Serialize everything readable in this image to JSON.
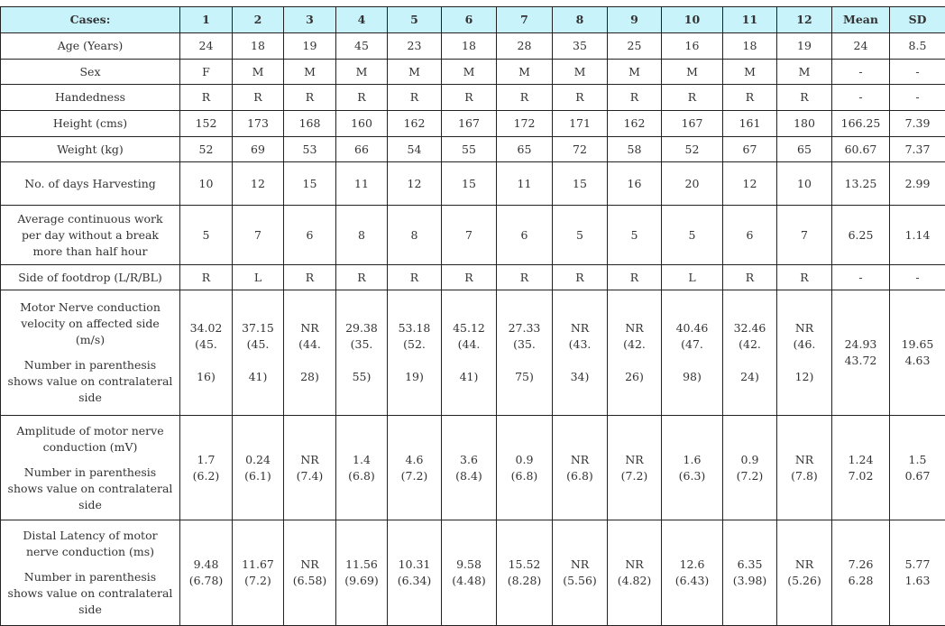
{
  "header": [
    "Cases:",
    "1",
    "2",
    "3",
    "4",
    "5",
    "6",
    "7",
    "8",
    "9",
    "10",
    "11",
    "12",
    "Mean",
    "SD"
  ],
  "header_bg": "#c8f3fb",
  "rows": [
    {
      "label": "Age (Years)",
      "values": [
        "24",
        "18",
        "19",
        "45",
        "23",
        "18",
        "28",
        "35",
        "25",
        "16",
        "18",
        "19",
        "24",
        "8.5"
      ]
    },
    {
      "label": "Sex",
      "values": [
        "F",
        "M",
        "M",
        "M",
        "M",
        "M",
        "M",
        "M",
        "M",
        "M",
        "M",
        "M",
        "-",
        "-"
      ]
    },
    {
      "label": "Handedness",
      "values": [
        "R",
        "R",
        "R",
        "R",
        "R",
        "R",
        "R",
        "R",
        "R",
        "R",
        "R",
        "R",
        "-",
        "-"
      ]
    },
    {
      "label": "Height (cms)",
      "values": [
        "152",
        "173",
        "168",
        "160",
        "162",
        "167",
        "172",
        "171",
        "162",
        "167",
        "161",
        "180",
        "166.25",
        "7.39"
      ]
    },
    {
      "label": "Weight (kg)",
      "values": [
        "52",
        "69",
        "53",
        "66",
        "54",
        "55",
        "65",
        "72",
        "58",
        "52",
        "67",
        "65",
        "60.67",
        "7.37"
      ]
    },
    {
      "label": "No. of days Harvesting",
      "values": [
        "10",
        "12",
        "15",
        "11",
        "12",
        "15",
        "11",
        "15",
        "16",
        "20",
        "12",
        "10",
        "13.25",
        "2.99"
      ]
    },
    {
      "label": "Average continuous work per day without a break more than half hour",
      "values": [
        "5",
        "7",
        "6",
        "8",
        "8",
        "7",
        "6",
        "5",
        "5",
        "5",
        "6",
        "7",
        "6.25",
        "1.14"
      ]
    },
    {
      "label": "Side of footdrop (L/R/BL)",
      "values": [
        "R",
        "L",
        "R",
        "R",
        "R",
        "R",
        "R",
        "R",
        "R",
        "L",
        "R",
        "R",
        "-",
        "-"
      ]
    },
    {
      "label": "Motor Nerve conduction velocity on affected side (m/s)",
      "note": "Number in parenthesis shows value on contralateral side",
      "values": [
        "34.02\n(45.\n\n16)",
        "37.15\n(45.\n\n41)",
        "NR\n(44.\n\n28)",
        "29.38\n(35.\n\n55)",
        "53.18\n(52.\n\n19)",
        "45.12\n(44.\n\n41)",
        "27.33\n(35.\n\n75)",
        "NR\n(43.\n\n34)",
        "NR\n(42.\n\n26)",
        "40.46\n(47.\n\n98)",
        "32.46\n(42.\n\n24)",
        "NR\n(46.\n\n12)",
        "24.93\n43.72",
        "19.65\n4.63"
      ]
    },
    {
      "label": "Amplitude of motor nerve conduction (mV)",
      "note": "Number in parenthesis shows value on contralateral side",
      "values": [
        "1.7\n(6.2)",
        "0.24\n(6.1)",
        "NR\n(7.4)",
        "1.4\n(6.8)",
        "4.6\n(7.2)",
        "3.6\n(8.4)",
        "0.9\n(6.8)",
        "NR\n(6.8)",
        "NR\n(7.2)",
        "1.6\n(6.3)",
        "0.9\n(7.2)",
        "NR\n(7.8)",
        "1.24\n7.02",
        "1.5\n0.67"
      ]
    },
    {
      "label": "Distal Latency of motor nerve conduction (ms)",
      "note": "Number in parenthesis shows value on contralateral side",
      "values": [
        "9.48\n(6.78)",
        "11.67\n(7.2)",
        "NR\n(6.58)",
        "11.56\n(9.69)",
        "10.31\n(6.34)",
        "9.58\n(4.48)",
        "15.52\n(8.28)",
        "NR\n(5.56)",
        "NR\n(4.82)",
        "12.6\n(6.43)",
        "6.35\n(3.98)",
        "NR\n(5.26)",
        "7.26\n6.28",
        "5.77\n1.63"
      ]
    }
  ]
}
